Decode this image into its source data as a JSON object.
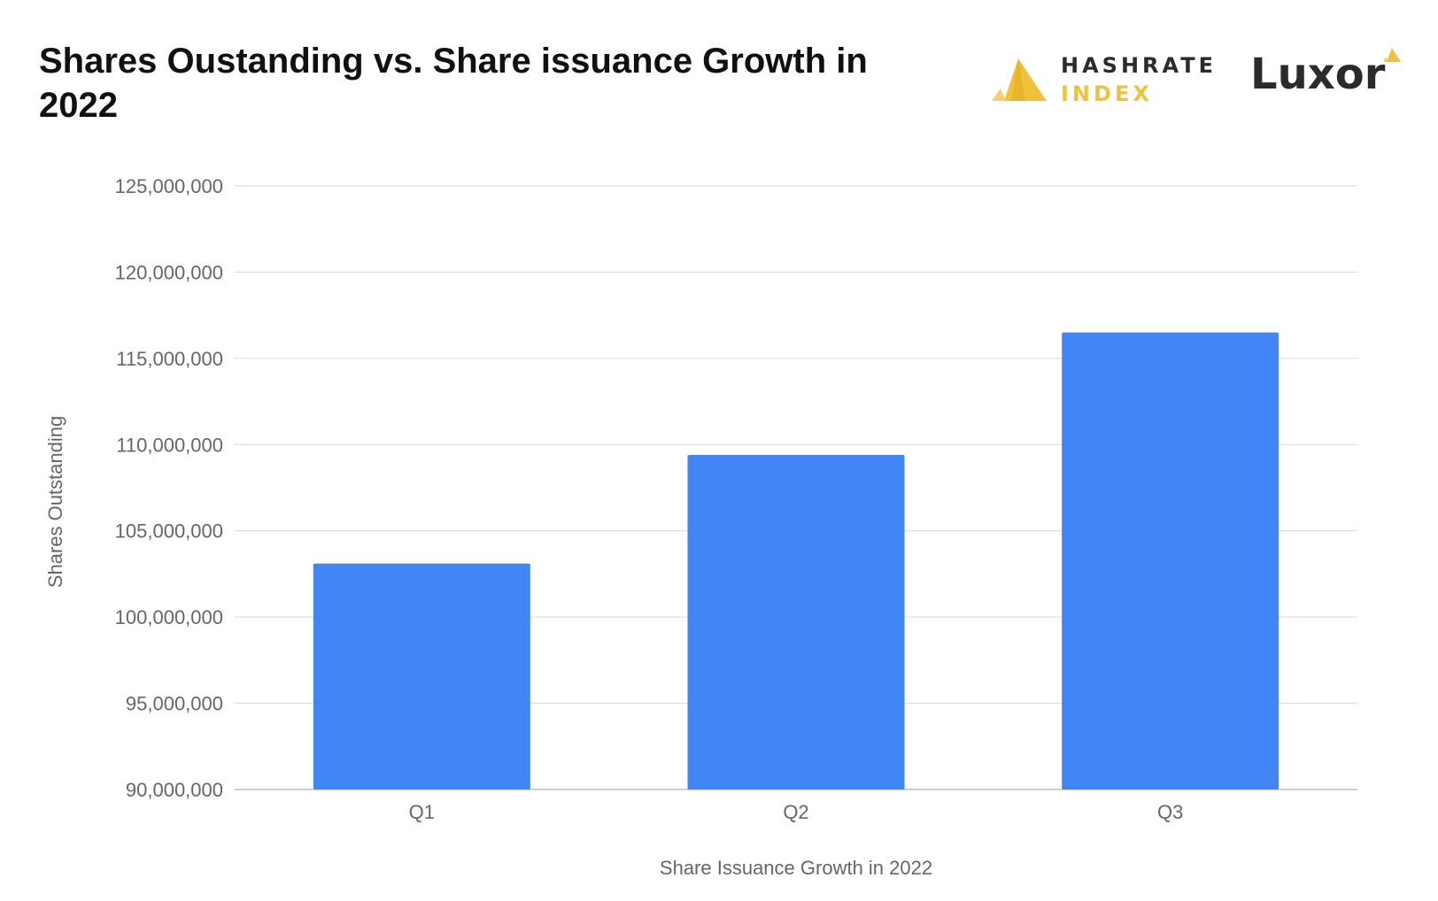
{
  "header": {
    "title": "Shares Oustanding vs. Share issuance Growth in 2022"
  },
  "logos": {
    "hashrate_line1": "HASHRATE",
    "hashrate_line2": "INDEX",
    "luxor": "Luxor"
  },
  "colors": {
    "bar": "#4285f4",
    "grid": "#d9d9d9",
    "hashrate_gold": "#f0c23b"
  },
  "chart_data": {
    "type": "bar",
    "title": "Shares Oustanding vs. Share issuance Growth in 2022",
    "categories": [
      "Q1",
      "Q2",
      "Q3"
    ],
    "values": [
      103100000,
      109400000,
      116500000
    ],
    "xlabel": "Share Issuance Growth in 2022",
    "ylabel": "Shares Outstanding",
    "ylim": [
      90000000,
      125000000
    ],
    "yticks": [
      90000000,
      95000000,
      100000000,
      105000000,
      110000000,
      115000000,
      120000000,
      125000000
    ],
    "ytick_labels": [
      "90,000,000",
      "95,000,000",
      "100,000,000",
      "105,000,000",
      "110,000,000",
      "115,000,000",
      "120,000,000",
      "125,000,000"
    ],
    "grid": true
  }
}
